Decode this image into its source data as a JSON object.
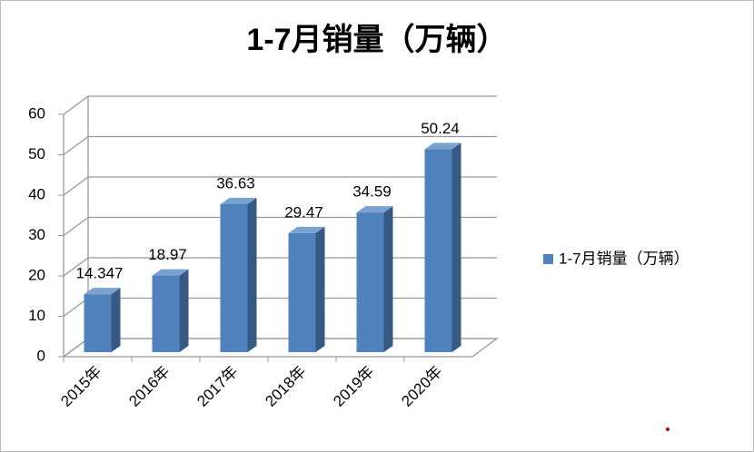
{
  "chart_data": {
    "type": "bar3d",
    "title": "1-7月销量（万辆）",
    "categories": [
      "2015年",
      "2016年",
      "2017年",
      "2018年",
      "2019年",
      "2020年"
    ],
    "series": [
      {
        "name": "1-7月销量（万辆）",
        "color": "#4f81bd",
        "values": [
          14.347,
          18.97,
          36.63,
          29.47,
          34.59,
          50.24
        ]
      }
    ],
    "ylim": [
      0,
      60
    ],
    "yticks": [
      0,
      10,
      20,
      30,
      40,
      50,
      60
    ],
    "grid": true,
    "legend": "right"
  }
}
